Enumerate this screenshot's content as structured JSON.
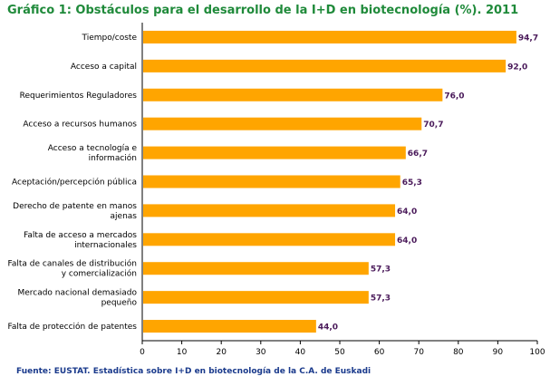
{
  "title": "Gráfico 1: Obstáculos para el desarrollo de la I+D en biotecnología (%). 2011",
  "source": "Fuente: EUSTAT. Estadística sobre I+D en biotecnología de la C.A. de Euskadi",
  "colors": {
    "bar": "#FFA500",
    "title": "#1f8a3a",
    "source": "#1a3a8c",
    "value": "#4a1a5a"
  },
  "chart_data": {
    "type": "bar",
    "orientation": "horizontal",
    "categories": [
      [
        "Tiempo/coste"
      ],
      [
        "Acceso a capital"
      ],
      [
        "Requerimientos Reguladores"
      ],
      [
        "Acceso a recursos humanos"
      ],
      [
        "Acceso a tecnología e",
        "información"
      ],
      [
        "Aceptación/percepción pública"
      ],
      [
        "Derecho de patente en manos",
        "ajenas"
      ],
      [
        "Falta de acceso a mercados",
        "internacionales"
      ],
      [
        "Falta de canales de distribución",
        "y comercialización"
      ],
      [
        "Mercado nacional demasiado",
        "pequeño"
      ],
      [
        "Falta de protección de patentes"
      ]
    ],
    "values": [
      94.7,
      92.0,
      76.0,
      70.7,
      66.7,
      65.3,
      64.0,
      64.0,
      57.3,
      57.3,
      44.0
    ],
    "value_labels": [
      "94,7",
      "92,0",
      "76,0",
      "70,7",
      "66,7",
      "65,3",
      "64,0",
      "64,0",
      "57,3",
      "57,3",
      "44,0"
    ],
    "xlim": [
      0,
      100
    ],
    "ticks": [
      "0",
      "10",
      "20",
      "30",
      "40",
      "50",
      "60",
      "70",
      "80",
      "90",
      "100"
    ],
    "xlabel": "",
    "ylabel": "",
    "grid": false
  }
}
